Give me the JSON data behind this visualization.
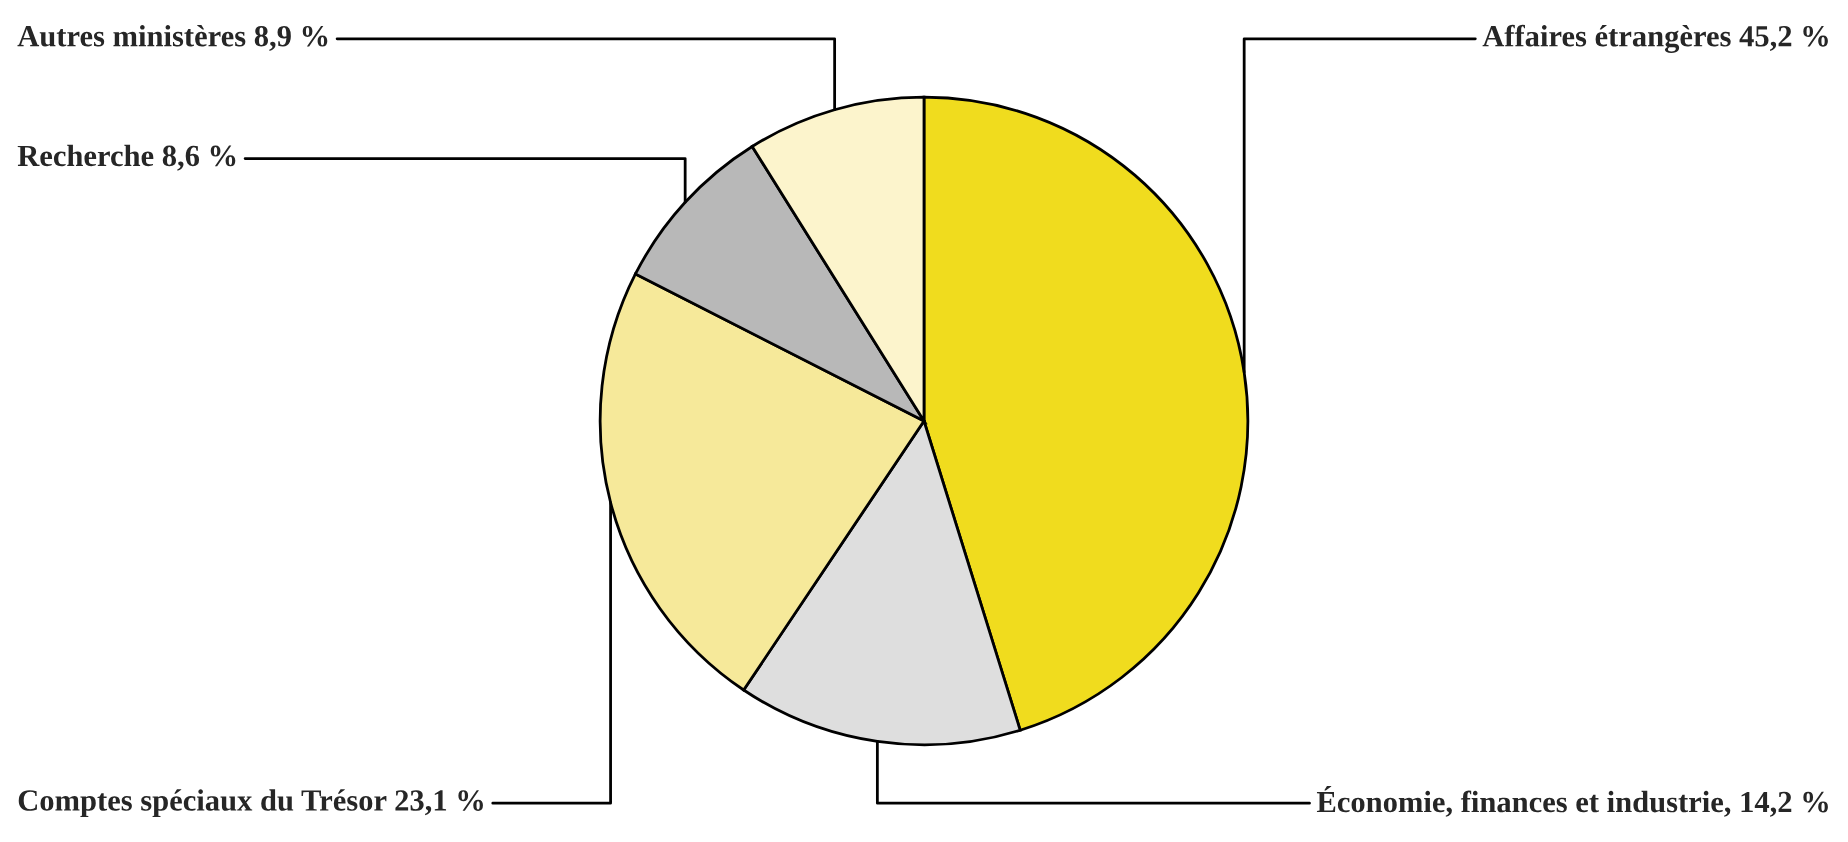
{
  "chart_data": {
    "type": "pie",
    "categories": [
      "Affaires étrangères",
      "Économie, finances et industrie",
      "Comptes spéciaux du Trésor",
      "Recherche",
      "Autres ministères"
    ],
    "values": [
      45.2,
      14.2,
      23.1,
      8.6,
      8.9
    ],
    "value_labels": [
      "45,2 %",
      ", 14,2 %",
      "23,1 %",
      "8,6 %",
      "8,9 %"
    ],
    "colors": [
      "#f0dc1e",
      "#dedede",
      "#f6e99a",
      "#b8b8b8",
      "#fcf4cc"
    ]
  }
}
